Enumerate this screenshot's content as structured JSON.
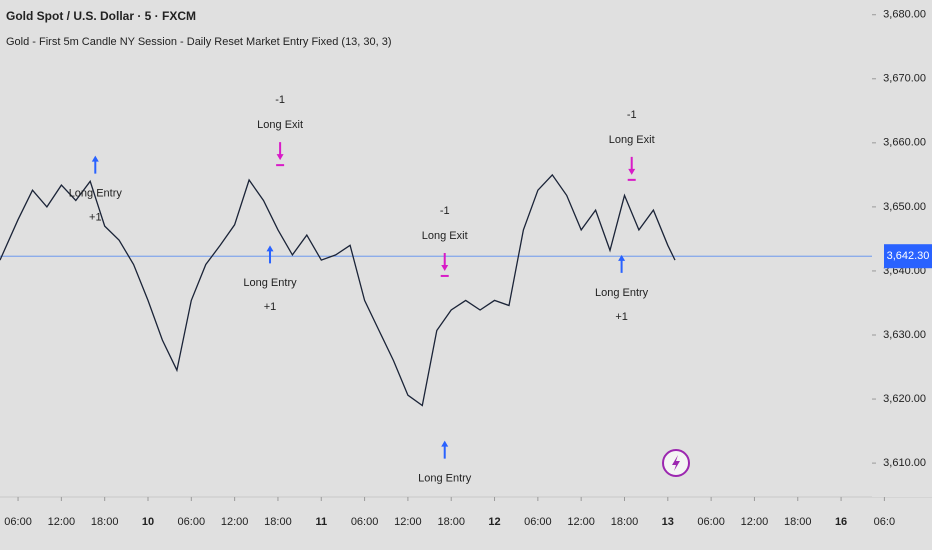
{
  "chart_data": {
    "type": "line",
    "title": "Gold Spot / U.S. Dollar · 5 · FXCM",
    "subtitle": "Gold - First 5m Candle NY Session - Daily Reset Market Entry Fixed (13, 30, 3)",
    "color": "#1b2438",
    "x": [
      -2.5,
      0,
      2,
      4,
      6,
      8,
      10,
      12,
      14,
      16,
      18,
      20,
      22,
      24,
      26,
      28,
      30,
      32,
      34,
      36,
      38,
      40,
      42,
      44,
      46,
      48,
      50,
      52,
      54,
      56,
      58,
      60,
      62,
      64,
      66,
      68,
      70,
      72,
      74,
      76,
      78,
      80,
      82,
      84,
      86,
      88,
      90,
      91
    ],
    "values": [
      3641.7,
      3648,
      3652.6,
      3650,
      3653.4,
      3651,
      3654,
      3647,
      3644.8,
      3641,
      3635.4,
      3629.2,
      3624.5,
      3635.4,
      3641,
      3644,
      3647.2,
      3654.2,
      3651,
      3646.4,
      3642.5,
      3645.6,
      3641.7,
      3642.5,
      3644,
      3635.4,
      3630.7,
      3626,
      3620.6,
      3619,
      3630.7,
      3633.9,
      3635.4,
      3633.9,
      3635.4,
      3634.6,
      3646.4,
      3652.6,
      3655,
      3651.8,
      3646.4,
      3649.5,
      3643.2,
      3651.8,
      3646.4,
      3649.5,
      3644,
      3641.7
    ],
    "xlim": [
      -2.5,
      120.5
    ],
    "ylim": [
      3605.8,
      3682.3
    ],
    "xticks": [
      {
        "value": 0,
        "label": "06:00"
      },
      {
        "value": 6,
        "label": "12:00"
      },
      {
        "value": 12,
        "label": "18:00"
      },
      {
        "value": 18,
        "label": "10"
      },
      {
        "value": 24,
        "label": "06:00"
      },
      {
        "value": 30,
        "label": "12:00"
      },
      {
        "value": 36,
        "label": "18:00"
      },
      {
        "value": 42,
        "label": "11"
      },
      {
        "value": 48,
        "label": "06:00"
      },
      {
        "value": 54,
        "label": "12:00"
      },
      {
        "value": 60,
        "label": "18:00"
      },
      {
        "value": 66,
        "label": "12"
      },
      {
        "value": 72,
        "label": "06:00"
      },
      {
        "value": 78,
        "label": "12:00"
      },
      {
        "value": 84,
        "label": "18:00"
      },
      {
        "value": 90,
        "label": "13"
      },
      {
        "value": 96,
        "label": "06:00"
      },
      {
        "value": 102,
        "label": "12:00"
      },
      {
        "value": 108,
        "label": "18:00"
      },
      {
        "value": 114,
        "label": "16"
      },
      {
        "value": 120,
        "label": "06:0"
      }
    ],
    "yticks": [
      {
        "value": 3610,
        "label": "3,610.00"
      },
      {
        "value": 3620,
        "label": "3,620.00"
      },
      {
        "value": 3630,
        "label": "3,630.00"
      },
      {
        "value": 3640,
        "label": "3,640.00"
      },
      {
        "value": 3650,
        "label": "3,650.00"
      },
      {
        "value": 3660,
        "label": "3,660.00"
      },
      {
        "value": 3670,
        "label": "3,670.00"
      },
      {
        "value": 3680,
        "label": "3,680.00"
      }
    ],
    "last_price": {
      "value": 3642.3,
      "label": "3,642.30"
    },
    "signals": [
      {
        "side": "entry",
        "label": "Long Entry",
        "qty": "+1",
        "x": 10.7,
        "price": 3658
      },
      {
        "side": "entry",
        "label": "Long Entry",
        "qty": "+1",
        "x": 34.9,
        "price": 3644
      },
      {
        "side": "exit",
        "label": "Long Exit",
        "qty": "-1",
        "x": 36.3,
        "price": 3657.3
      },
      {
        "side": "exit",
        "label": "Long Exit",
        "qty": "-1",
        "x": 59.1,
        "price": 3640
      },
      {
        "side": "entry",
        "label": "Long Entry",
        "x": 59.1,
        "price": 3613.5
      },
      {
        "side": "exit",
        "label": "Long Exit",
        "qty": "-1",
        "x": 85,
        "price": 3655
      },
      {
        "side": "entry",
        "label": "Long Entry",
        "qty": "+1",
        "x": 83.6,
        "price": 3642.5
      }
    ]
  }
}
